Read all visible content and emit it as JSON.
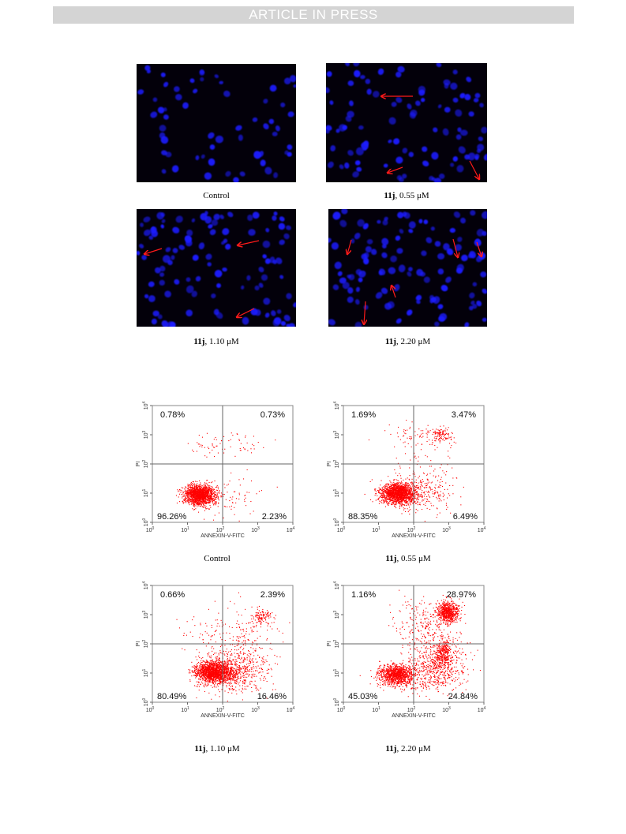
{
  "header": {
    "banner": "ARTICLE IN PRESS"
  },
  "colors": {
    "nucleus": "#1a1aff",
    "arrow": "#ff1a1a",
    "dots": "#ff0000",
    "background": "#03000a"
  },
  "microscopy": [
    {
      "compound": "",
      "dose": "Control",
      "arrows": 0
    },
    {
      "compound": "11j",
      "dose": ", 0.55 μM",
      "arrows": 3
    },
    {
      "compound": "11j",
      "dose": ", 1.10 μM",
      "arrows": 3
    },
    {
      "compound": "11j",
      "dose": ", 2.20 μM",
      "arrows": 4
    }
  ],
  "flow": {
    "xlabel": "ANNEXIN-V-FITC",
    "ylabel": "PI",
    "tick_base": "10",
    "tick_exps": [
      "0",
      "1",
      "2",
      "3",
      "4"
    ],
    "panels": [
      {
        "compound": "",
        "dose": "Control",
        "q_ul": "0.78%",
        "q_ur": "0.73%",
        "q_ll": "96.26%",
        "q_lr": "2.23%"
      },
      {
        "compound": "11j",
        "dose": ", 0.55 μM",
        "q_ul": "1.69%",
        "q_ur": "3.47%",
        "q_ll": "88.35%",
        "q_lr": "6.49%"
      },
      {
        "compound": "11j",
        "dose": ", 1.10 μM",
        "q_ul": "0.66%",
        "q_ur": "2.39%",
        "q_ll": "80.49%",
        "q_lr": "16.46%"
      },
      {
        "compound": "11j",
        "dose": ", 2.20 μM",
        "q_ul": "1.16%",
        "q_ur": "28.97%",
        "q_ll": "45.03%",
        "q_lr": "24.84%"
      }
    ]
  }
}
